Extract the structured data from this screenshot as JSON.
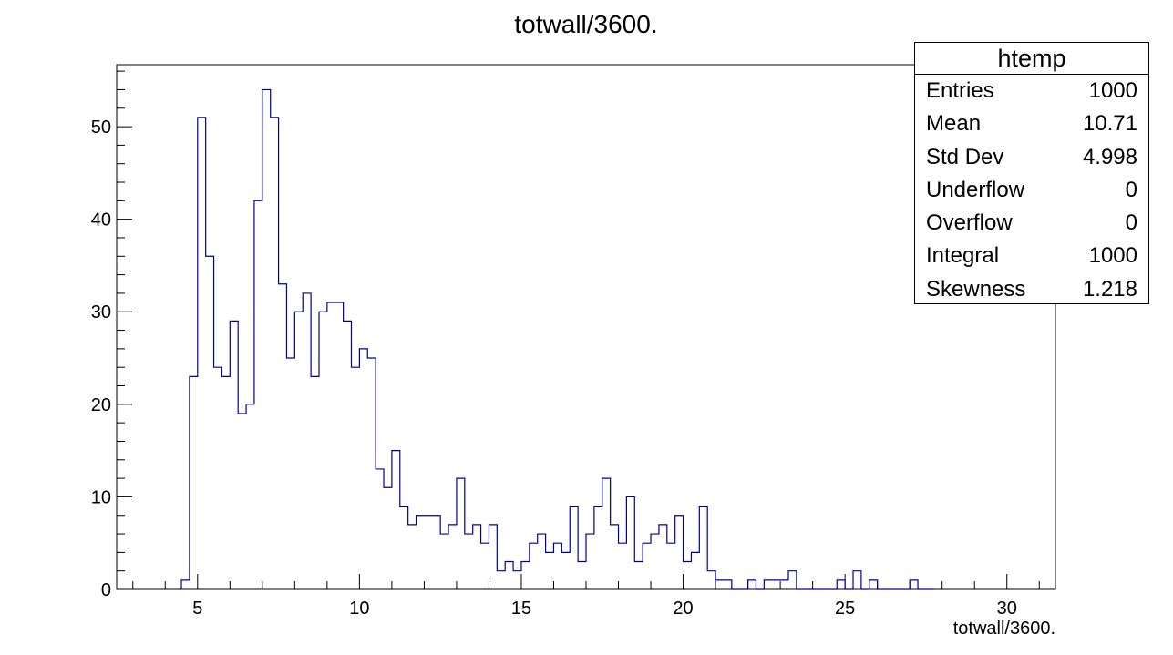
{
  "chart_data": {
    "type": "bar",
    "title": "totwall/3600.",
    "xlabel": "totwall/3600.",
    "ylabel": "",
    "xlim": [
      2.5,
      31.5
    ],
    "ylim": [
      0,
      56.7
    ],
    "x_ticks": [
      5,
      10,
      15,
      20,
      25,
      30
    ],
    "y_ticks": [
      0,
      10,
      20,
      30,
      40,
      50
    ],
    "line_color": "#000099",
    "bin_width": 0.25,
    "first_bin_start": 4.5,
    "values": [
      1,
      23,
      51,
      36,
      24,
      23,
      29,
      19,
      20,
      42,
      54,
      51,
      33,
      25,
      30,
      32,
      23,
      30,
      31,
      31,
      29,
      24,
      26,
      25,
      13,
      11,
      15,
      9,
      7,
      8,
      8,
      8,
      6,
      7,
      12,
      6,
      7,
      5,
      7,
      2,
      3,
      2,
      3,
      5,
      6,
      4,
      5,
      4,
      9,
      3,
      6,
      9,
      12,
      7,
      5,
      10,
      3,
      5,
      6,
      7,
      5,
      8,
      3,
      4,
      9,
      2,
      1,
      1,
      0,
      0,
      1,
      0,
      1,
      1,
      1,
      2,
      0,
      0,
      0,
      0,
      0,
      1,
      0,
      2,
      0,
      1,
      0,
      0,
      0,
      0,
      1,
      0,
      0
    ]
  },
  "stats_box": {
    "title": "htemp",
    "rows": [
      {
        "label": "Entries",
        "value": "1000"
      },
      {
        "label": "Mean",
        "value": "10.71"
      },
      {
        "label": "Std Dev",
        "value": "4.998"
      },
      {
        "label": "Underflow",
        "value": "0"
      },
      {
        "label": "Overflow",
        "value": "0"
      },
      {
        "label": "Integral",
        "value": "1000"
      },
      {
        "label": "Skewness",
        "value": "1.218"
      }
    ]
  }
}
